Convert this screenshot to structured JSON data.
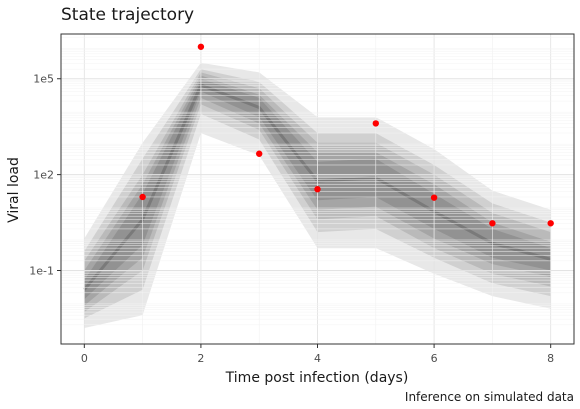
{
  "chart_data": {
    "type": "scatter",
    "title": "State trajectory",
    "xlabel": "Time post infection (days)",
    "ylabel": "Viral load",
    "caption": "Inference on simulated data",
    "xlim": [
      -0.4,
      8.4
    ],
    "ylim_log10": [
      -3.3,
      6.4
    ],
    "y_scale": "log10",
    "x_ticks": [
      0,
      2,
      4,
      6,
      8
    ],
    "x_tick_labels": [
      "0",
      "2",
      "4",
      "6",
      "8"
    ],
    "y_ticks_log10": [
      -1,
      2,
      5
    ],
    "y_tick_labels": [
      "1e-1",
      "1e2",
      "1e5"
    ],
    "grid": true,
    "band_x": [
      0,
      1,
      2,
      3,
      4,
      5,
      6,
      7,
      8
    ],
    "bands_log10": [
      {
        "lower": [
          -2.8,
          -2.4,
          3.3,
          2.6,
          -0.3,
          -0.3,
          -1.1,
          -1.8,
          -2.2
        ],
        "upper": [
          0.0,
          3.0,
          5.5,
          5.2,
          3.8,
          3.8,
          2.8,
          1.5,
          0.9
        ]
      },
      {
        "lower": [
          -2.5,
          -1.6,
          3.9,
          3.1,
          0.2,
          0.3,
          -0.6,
          -1.4,
          -1.8
        ],
        "upper": [
          -0.4,
          2.5,
          5.3,
          4.9,
          3.3,
          3.3,
          2.3,
          1.1,
          0.5
        ]
      },
      {
        "lower": [
          -2.3,
          -1.0,
          4.2,
          3.4,
          0.6,
          0.7,
          -0.3,
          -1.1,
          -1.5
        ],
        "upper": [
          -0.7,
          2.0,
          5.2,
          4.7,
          3.0,
          3.0,
          2.0,
          0.8,
          0.2
        ]
      },
      {
        "lower": [
          -2.1,
          -0.6,
          4.4,
          3.6,
          0.9,
          1.0,
          0.0,
          -0.8,
          -1.2
        ],
        "upper": [
          -1.0,
          1.7,
          5.1,
          4.5,
          2.7,
          2.7,
          1.7,
          0.5,
          -0.1
        ]
      },
      {
        "lower": [
          -1.9,
          -0.2,
          4.6,
          3.8,
          1.2,
          1.3,
          0.3,
          -0.6,
          -1.0
        ],
        "upper": [
          -1.3,
          1.4,
          5.0,
          4.4,
          2.4,
          2.5,
          1.4,
          0.3,
          -0.3
        ]
      }
    ],
    "points": [
      {
        "x": 1,
        "y": 20
      },
      {
        "x": 2,
        "y": 1000000
      },
      {
        "x": 3,
        "y": 450
      },
      {
        "x": 4,
        "y": 35
      },
      {
        "x": 5,
        "y": 4000
      },
      {
        "x": 6,
        "y": 19
      },
      {
        "x": 7,
        "y": 3
      },
      {
        "x": 8,
        "y": 3
      }
    ],
    "point_color": "#ff0000",
    "band_color": "#4d4d4d"
  }
}
